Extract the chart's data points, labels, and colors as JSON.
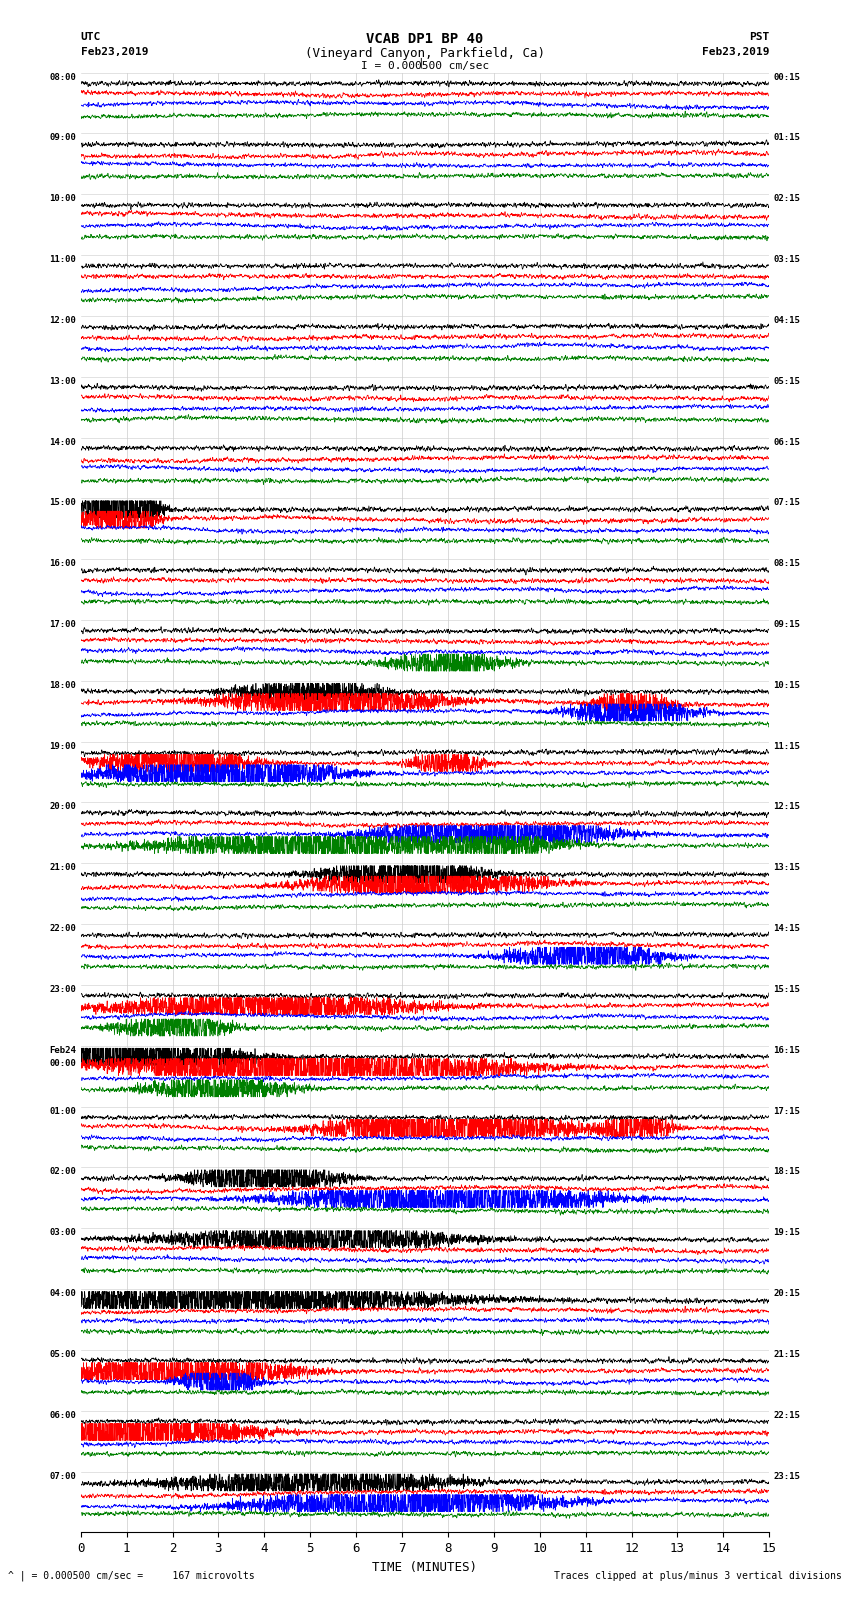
{
  "title_line1": "VCAB DP1 BP 40",
  "title_line2": "(Vineyard Canyon, Parkfield, Ca)",
  "scale_text": "I = 0.000500 cm/sec",
  "left_header_line1": "UTC",
  "left_header_line2": "Feb23,2019",
  "right_header_line1": "PST",
  "right_header_line2": "Feb23,2019",
  "bottom_label": "TIME (MINUTES)",
  "bottom_note_left": "^ | = 0.000500 cm/sec =     167 microvolts",
  "bottom_note_right": "Traces clipped at plus/minus 3 vertical divisions",
  "xlim": [
    0,
    15
  ],
  "xticks": [
    0,
    1,
    2,
    3,
    4,
    5,
    6,
    7,
    8,
    9,
    10,
    11,
    12,
    13,
    14,
    15
  ],
  "background_color": "#ffffff",
  "trace_colors": [
    "black",
    "red",
    "blue",
    "green"
  ],
  "n_rows": 24,
  "left_times_utc": [
    "08:00",
    "09:00",
    "10:00",
    "11:00",
    "12:00",
    "13:00",
    "14:00",
    "15:00",
    "16:00",
    "17:00",
    "18:00",
    "19:00",
    "20:00",
    "21:00",
    "22:00",
    "23:00",
    "Feb24\n00:00",
    "01:00",
    "02:00",
    "03:00",
    "04:00",
    "05:00",
    "06:00",
    "07:00"
  ],
  "right_times_pst": [
    "00:15",
    "01:15",
    "02:15",
    "03:15",
    "04:15",
    "05:15",
    "06:15",
    "07:15",
    "08:15",
    "09:15",
    "10:15",
    "11:15",
    "12:15",
    "13:15",
    "14:15",
    "15:15",
    "16:15",
    "17:15",
    "18:15",
    "19:15",
    "20:15",
    "21:15",
    "22:15",
    "23:15"
  ],
  "fig_width": 8.5,
  "fig_height": 16.13,
  "dpi": 100
}
